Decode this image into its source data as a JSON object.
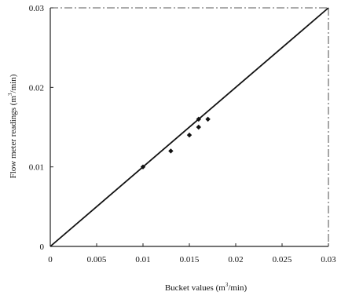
{
  "chart_data": {
    "type": "scatter",
    "title": "",
    "xlabel": "Bucket values (m",
    "xlabel_sup": "3",
    "xlabel_suffix": "/min)",
    "ylabel": "Flow meter readings (m",
    "ylabel_sup": "3",
    "ylabel_suffix": "/min)",
    "xlim": [
      0,
      0.03
    ],
    "ylim": [
      0,
      0.03
    ],
    "x_ticks": [
      {
        "value": 0,
        "label": "0"
      },
      {
        "value": 0.005,
        "label": "0.005"
      },
      {
        "value": 0.01,
        "label": "0.01"
      },
      {
        "value": 0.015,
        "label": "0.015"
      },
      {
        "value": 0.02,
        "label": "0.02"
      },
      {
        "value": 0.025,
        "label": "0.025"
      },
      {
        "value": 0.03,
        "label": "0.03"
      }
    ],
    "y_ticks": [
      {
        "value": 0,
        "label": "0"
      },
      {
        "value": 0.01,
        "label": "0.01"
      },
      {
        "value": 0.02,
        "label": "0.02"
      },
      {
        "value": 0.03,
        "label": "0.03"
      }
    ],
    "series": [
      {
        "x": [
          0.01,
          0.013,
          0.015,
          0.016,
          0.016,
          0.017
        ],
        "y": [
          0.01,
          0.012,
          0.014,
          0.015,
          0.016,
          0.016
        ]
      }
    ],
    "reference_line": {
      "x": [
        0,
        0.03
      ],
      "y": [
        0,
        0.03
      ]
    },
    "grid": false,
    "legend": "none",
    "colors": {
      "marker": "#111111",
      "line": "#111111",
      "frame": "#222222"
    }
  }
}
